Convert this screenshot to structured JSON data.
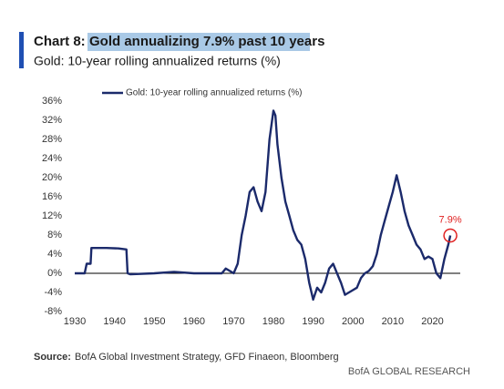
{
  "chart_data": {
    "type": "line",
    "title_label": "Chart 8:",
    "title": "Gold annualizing 7.9% past 10 years",
    "subtitle": "Gold: 10-year rolling annualized returns (%)",
    "x": [
      1930,
      1932.5,
      1933,
      1934,
      1934.2,
      1938,
      1941,
      1943,
      1943.3,
      1944,
      1950,
      1955,
      1960,
      1967,
      1968,
      1969,
      1970,
      1971,
      1972,
      1973,
      1974,
      1975,
      1976,
      1977,
      1978,
      1979,
      1980,
      1980.5,
      1981,
      1982,
      1983,
      1984,
      1985,
      1986,
      1987,
      1988,
      1989,
      1990,
      1991,
      1992,
      1993,
      1994,
      1995,
      1996,
      1997,
      1998,
      1999,
      2000,
      2001,
      2002,
      2003,
      2004,
      2005,
      2006,
      2007,
      2008,
      2009,
      2010,
      2011,
      2012,
      2013,
      2014,
      2015,
      2016,
      2017,
      2018,
      2019,
      2020,
      2021,
      2022,
      2023,
      2024,
      2024.5
    ],
    "series": [
      {
        "name": "Gold: 10-year rolling annualized returns (%)",
        "color": "#1b2a6b",
        "values": [
          0,
          0,
          2,
          2,
          5.3,
          5.3,
          5.2,
          5,
          0,
          -0.2,
          0,
          0.3,
          0,
          0,
          1,
          0.5,
          0,
          2,
          8,
          12,
          17,
          18,
          15,
          13,
          17,
          28,
          34,
          33,
          27,
          20,
          15,
          12,
          9,
          7,
          6,
          3,
          -2,
          -5.5,
          -3,
          -4,
          -2,
          1,
          2,
          0,
          -2,
          -4.5,
          -4,
          -3.5,
          -3,
          -1,
          0,
          0.5,
          1.5,
          4,
          8,
          11,
          14,
          17,
          20.5,
          17,
          13,
          10,
          8,
          6,
          5,
          3,
          3.5,
          3,
          0,
          -1,
          3,
          6,
          7.9
        ]
      }
    ],
    "xlim": [
      1930,
      2027
    ],
    "xticks": [
      1930,
      1940,
      1950,
      1960,
      1970,
      1980,
      1990,
      2000,
      2010,
      2020
    ],
    "ylim": [
      -8,
      36
    ],
    "yticks": [
      {
        "value": -8,
        "label": "-8%"
      },
      {
        "value": -4,
        "label": "-4%"
      },
      {
        "value": 0,
        "label": "0%"
      },
      {
        "value": 4,
        "label": "4%"
      },
      {
        "value": 8,
        "label": "8%"
      },
      {
        "value": 12,
        "label": "12%"
      },
      {
        "value": 16,
        "label": "16%"
      },
      {
        "value": 20,
        "label": "20%"
      },
      {
        "value": 24,
        "label": "24%"
      },
      {
        "value": 28,
        "label": "28%"
      },
      {
        "value": 32,
        "label": "32%"
      },
      {
        "value": 36,
        "label": "36%"
      }
    ],
    "annotations": [
      {
        "text": "7.9%",
        "x": 2024.5,
        "y": 7.9,
        "color": "#e02020"
      }
    ],
    "source_label": "Source:",
    "source": "BofA Global Investment Strategy, GFD Finaeon, Bloomberg",
    "footer": "BofA GLOBAL RESEARCH"
  }
}
